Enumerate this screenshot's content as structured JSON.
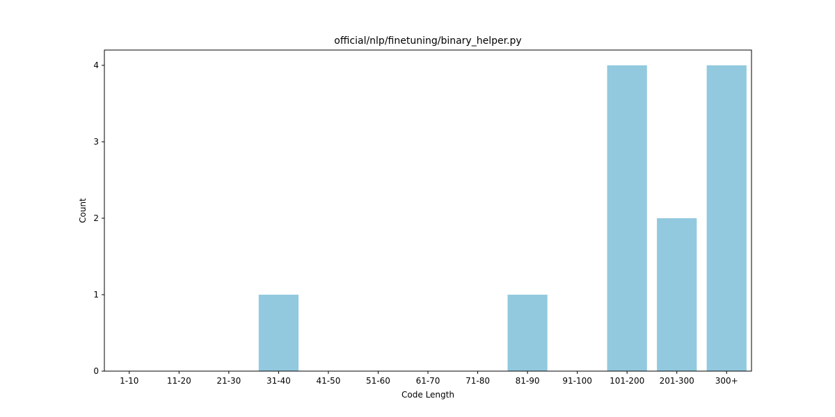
{
  "chart_data": {
    "type": "bar",
    "title": "official/nlp/finetuning/binary_helper.py",
    "xlabel": "Code Length",
    "ylabel": "Count",
    "categories": [
      "1-10",
      "11-20",
      "21-30",
      "31-40",
      "41-50",
      "51-60",
      "61-70",
      "71-80",
      "81-90",
      "91-100",
      "101-200",
      "201-300",
      "300+"
    ],
    "values": [
      0,
      0,
      0,
      1,
      0,
      0,
      0,
      0,
      1,
      0,
      4,
      2,
      4
    ],
    "ylim": [
      0,
      4.2
    ],
    "yticks": [
      0,
      1,
      2,
      3,
      4
    ],
    "grid": false,
    "bar_color": "#92c9df"
  }
}
